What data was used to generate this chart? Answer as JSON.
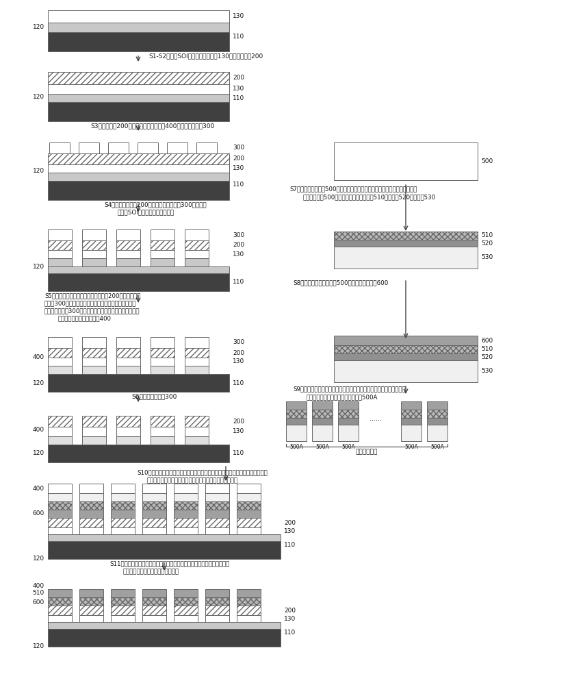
{
  "bg": "#ffffff",
  "dark": "#404040",
  "gray_sio2": "#c8c8c8",
  "gray_dot": "#b8b8b8",
  "white": "#ffffff",
  "mid_gray": "#909090",
  "iso_gray": "#a0a0a0",
  "light": "#f0f0f0",
  "steps": {
    "s12": "S1-S2、准备SOI衬底，并在在硅层130上制备电极层200",
    "s3": "S3、在电极层200上制备与目标凹槽阵列400图案相反的掩膜300",
    "s4_1": "S4、由所述电极层200表面没有被所述掩膜300覆盖区域",
    "s4_2": "向所述SOI衬底方向刻蚀第一深度",
    "s5_1": "S5、采用湿法刻蚀方法，由所述电极层200表面没有被所",
    "s5_2": "述掩膜300覆盖区域向所述衬底层方向继续刻蚀，直至将",
    "s5_3": "没有被所述掩膜300覆盖区域对应的剩余厚度的氧化层完全",
    "s5_4": "刻蚀掉，形成目标凹槽阵列400",
    "s6": "S6、去除所述掩膜300",
    "s7_1": "S7、由电光晶体基片500工艺面向所述电光晶体基片内进行离子注入，将所述",
    "s7_2": "电光晶体基片500依次分为电光晶体薄膜层510、分离层520和余量层530",
    "s8": "S8、在所述电光晶体基片500工艺面制备隔离层600",
    "s9_1": "S9、切割制备有所述隔离层的电光晶体基片，得到与所述目标凹槽阵列",
    "s9_2": "中各凹槽尺寸相匹配的电光晶体切片500A",
    "s10_1": "S10、将各个所述电光晶体切片转移至所述目标凹槽阵列中对应的凹槽内，且与所",
    "s10_2": "述目标凹槽阵列中对应的凹槽内的衬底层键合，得到键合体",
    "s11_1": "S11、对所述键合体进行热处理，将每个所述电光晶体切片的余量层与电光",
    "s11_2": "晶体薄膜层分离，得到电光晶体薄膜",
    "chip_label": "电光晶体切片"
  }
}
